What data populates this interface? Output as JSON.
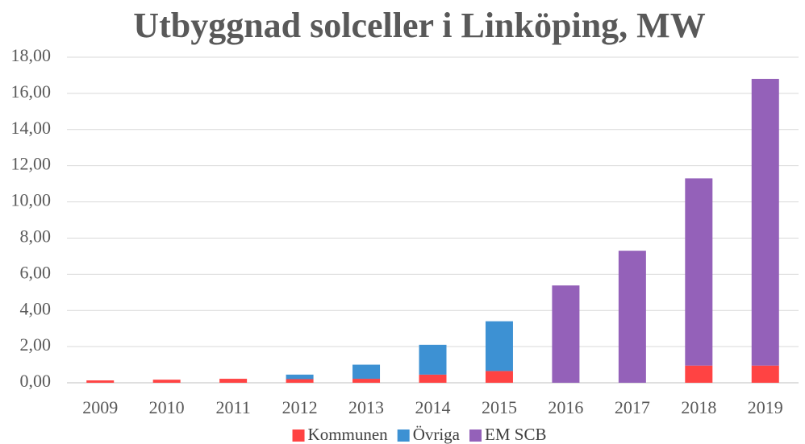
{
  "chart_data": {
    "type": "bar",
    "stacked": true,
    "title": "Utbyggnad solceller i Linköping, MW",
    "categories": [
      "2009",
      "2010",
      "2011",
      "2012",
      "2013",
      "2014",
      "2015",
      "2016",
      "2017",
      "2018",
      "2019"
    ],
    "series": [
      {
        "name": "Kommunen",
        "color": "#ff4343",
        "values": [
          0.13,
          0.17,
          0.22,
          0.2,
          0.22,
          0.45,
          0.65,
          null,
          null,
          0.95,
          0.95
        ]
      },
      {
        "name": "Övriga",
        "color": "#3d91d3",
        "values": [
          null,
          null,
          null,
          0.25,
          0.78,
          1.65,
          2.75,
          null,
          null,
          null,
          null
        ]
      },
      {
        "name": "EM SCB",
        "color": "#9461b9",
        "values": [
          null,
          null,
          null,
          null,
          null,
          null,
          null,
          5.38,
          7.3,
          10.35,
          15.85
        ]
      }
    ],
    "ylim": [
      0,
      18
    ],
    "yticks": [
      {
        "value": 0,
        "label": "0,00"
      },
      {
        "value": 2,
        "label": "2,00"
      },
      {
        "value": 4,
        "label": "4,00"
      },
      {
        "value": 6,
        "label": "6,00"
      },
      {
        "value": 8,
        "label": "8,00"
      },
      {
        "value": 10,
        "label": "10,00"
      },
      {
        "value": 12,
        "label": "12,00"
      },
      {
        "value": 14,
        "label": "14,00"
      },
      {
        "value": 16,
        "label": "16,00"
      },
      {
        "value": 18,
        "label": "18,00"
      }
    ],
    "grid": true,
    "legend": "bottom"
  }
}
